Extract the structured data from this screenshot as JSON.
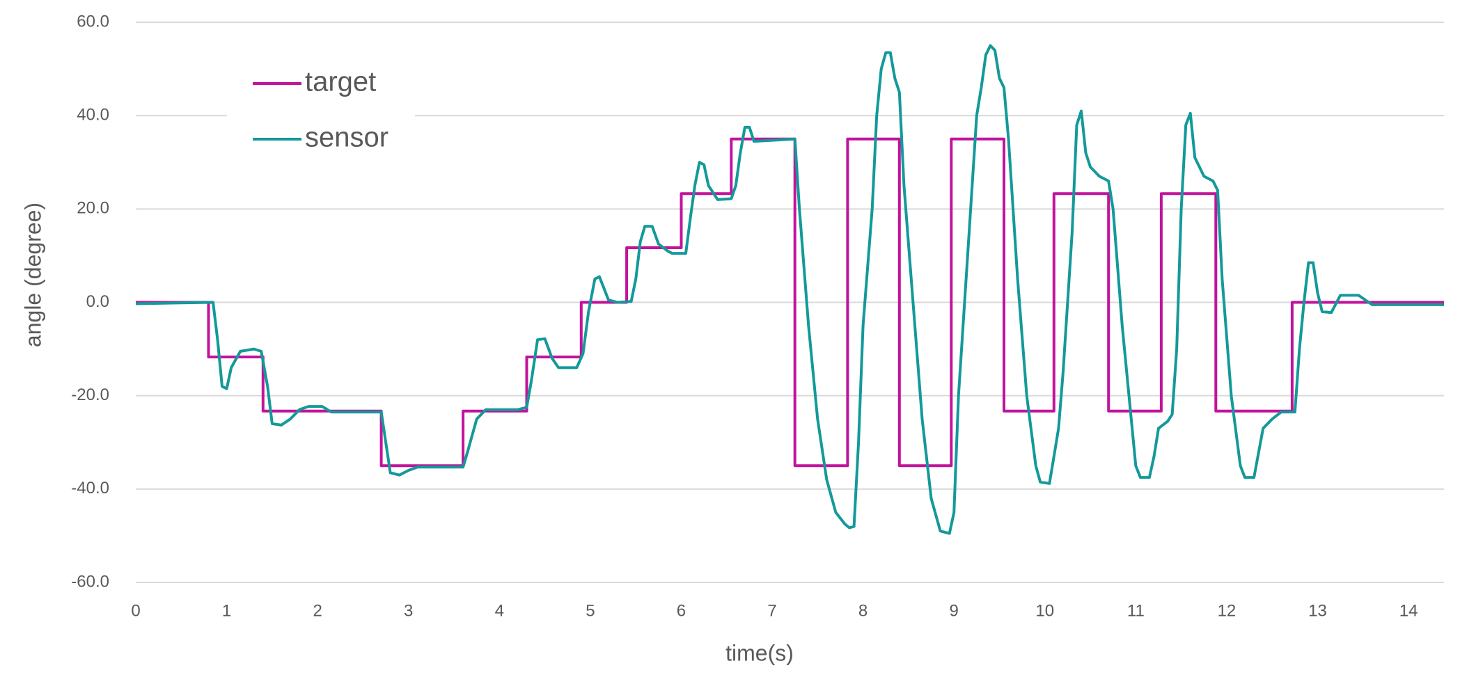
{
  "chart_data": {
    "type": "line",
    "x_label": "time(s)",
    "y_label": "angle (degree)",
    "xlim": [
      0,
      14.39
    ],
    "xticks": [
      0,
      1,
      2,
      3,
      4,
      5,
      6,
      7,
      8,
      9,
      10,
      11,
      12,
      13,
      14
    ],
    "ylim": [
      -60,
      60
    ],
    "yticks": [
      {
        "value": -60,
        "label": "-60.0"
      },
      {
        "value": -40,
        "label": "-40.0"
      },
      {
        "value": -20,
        "label": "-20.0"
      },
      {
        "value": 0,
        "label": "0.0"
      },
      {
        "value": 20,
        "label": "20.0"
      },
      {
        "value": 40,
        "label": "40.0"
      },
      {
        "value": 60,
        "label": "60.0"
      }
    ],
    "grid": true,
    "legend": "upper-left",
    "series": [
      {
        "name": "target",
        "color": "#c2139b",
        "x": [
          0,
          0.8,
          0.8,
          1.4,
          1.4,
          2.7,
          2.7,
          3.6,
          3.6,
          4.3,
          4.3,
          4.9,
          4.9,
          5.4,
          5.4,
          6.0,
          6.0,
          6.55,
          6.55,
          7.25,
          7.25,
          7.83,
          7.83,
          8.4,
          8.4,
          8.97,
          8.97,
          9.55,
          9.55,
          10.1,
          10.1,
          10.7,
          10.7,
          11.28,
          11.28,
          11.88,
          11.88,
          12.72,
          12.72,
          14.39
        ],
        "values": [
          0,
          0,
          -11.7,
          -11.7,
          -23.3,
          -23.3,
          -35,
          -35,
          -23.3,
          -23.3,
          -11.7,
          -11.7,
          0,
          0,
          11.7,
          11.7,
          23.3,
          23.3,
          35,
          35,
          -35,
          -35,
          35,
          35,
          -35,
          -35,
          35,
          35,
          -23.3,
          -23.3,
          23.3,
          23.3,
          -23.3,
          -23.3,
          23.3,
          23.3,
          -23.3,
          -23.3,
          0,
          0
        ]
      },
      {
        "name": "sensor",
        "color": "#14999a",
        "x": [
          0,
          0.85,
          0.9,
          0.95,
          1.0,
          1.05,
          1.15,
          1.3,
          1.38,
          1.45,
          1.5,
          1.6,
          1.7,
          1.8,
          1.9,
          2.05,
          2.15,
          2.7,
          2.75,
          2.8,
          2.9,
          3.0,
          3.1,
          3.6,
          3.65,
          3.75,
          3.85,
          4.2,
          4.3,
          4.35,
          4.42,
          4.5,
          4.58,
          4.65,
          4.85,
          4.92,
          4.98,
          5.05,
          5.1,
          5.15,
          5.2,
          5.3,
          5.45,
          5.5,
          5.55,
          5.6,
          5.68,
          5.75,
          5.85,
          5.9,
          6.05,
          6.1,
          6.15,
          6.2,
          6.25,
          6.3,
          6.4,
          6.55,
          6.6,
          6.65,
          6.7,
          6.75,
          6.8,
          7.25,
          7.3,
          7.4,
          7.5,
          7.6,
          7.7,
          7.8,
          7.85,
          7.9,
          7.95,
          8.0,
          8.1,
          8.15,
          8.2,
          8.25,
          8.3,
          8.35,
          8.4,
          8.45,
          8.55,
          8.65,
          8.75,
          8.85,
          8.95,
          9.0,
          9.05,
          9.15,
          9.25,
          9.3,
          9.35,
          9.4,
          9.45,
          9.5,
          9.55,
          9.6,
          9.7,
          9.8,
          9.9,
          9.95,
          10.05,
          10.1,
          10.15,
          10.2,
          10.3,
          10.35,
          10.4,
          10.45,
          10.5,
          10.6,
          10.7,
          10.75,
          10.85,
          10.95,
          11.0,
          11.05,
          11.15,
          11.2,
          11.25,
          11.35,
          11.4,
          11.45,
          11.5,
          11.55,
          11.6,
          11.65,
          11.75,
          11.85,
          11.9,
          11.95,
          12.05,
          12.15,
          12.2,
          12.3,
          12.4,
          12.5,
          12.6,
          12.75,
          12.8,
          12.85,
          12.9,
          12.95,
          13.0,
          13.05,
          13.15,
          13.25,
          13.45,
          13.6,
          14.39
        ],
        "values": [
          -0.3,
          0,
          -8,
          -18,
          -18.5,
          -14,
          -10.5,
          -10,
          -10.5,
          -18,
          -26,
          -26.3,
          -25,
          -23,
          -22.3,
          -22.3,
          -23.5,
          -23.5,
          -30,
          -36.5,
          -37,
          -36,
          -35.3,
          -35.3,
          -32,
          -25,
          -23,
          -23,
          -22.5,
          -17,
          -8,
          -7.8,
          -12,
          -14,
          -14,
          -11,
          -2,
          5,
          5.5,
          3,
          0.5,
          0,
          0.2,
          5,
          13,
          16.3,
          16.3,
          12.5,
          11,
          10.5,
          10.5,
          18,
          25,
          30,
          29.5,
          25,
          22,
          22.2,
          25,
          32,
          37.5,
          37.5,
          34.5,
          35,
          20,
          -5,
          -25,
          -38,
          -45,
          -47.5,
          -48.3,
          -48,
          -30,
          -5,
          20,
          40,
          50,
          53.5,
          53.5,
          48,
          45,
          25,
          0,
          -25,
          -42,
          -49,
          -49.5,
          -45,
          -20,
          10,
          40,
          46,
          53,
          55,
          54,
          48,
          46,
          35,
          5,
          -20,
          -35,
          -38.5,
          -38.8,
          -33,
          -27,
          -15,
          15,
          38,
          41,
          32,
          29,
          27,
          26,
          20,
          -5,
          -25,
          -35,
          -37.5,
          -37.5,
          -33,
          -27,
          -25.5,
          -24,
          -10,
          20,
          38,
          40.5,
          31,
          27,
          26,
          24,
          5,
          -20,
          -35,
          -37.5,
          -37.5,
          -27,
          -25,
          -23.5,
          -23.5,
          -10,
          0,
          8.5,
          8.5,
          2,
          -2,
          -2.2,
          1.5,
          1.5,
          -0.5,
          -0.5
        ]
      }
    ]
  }
}
